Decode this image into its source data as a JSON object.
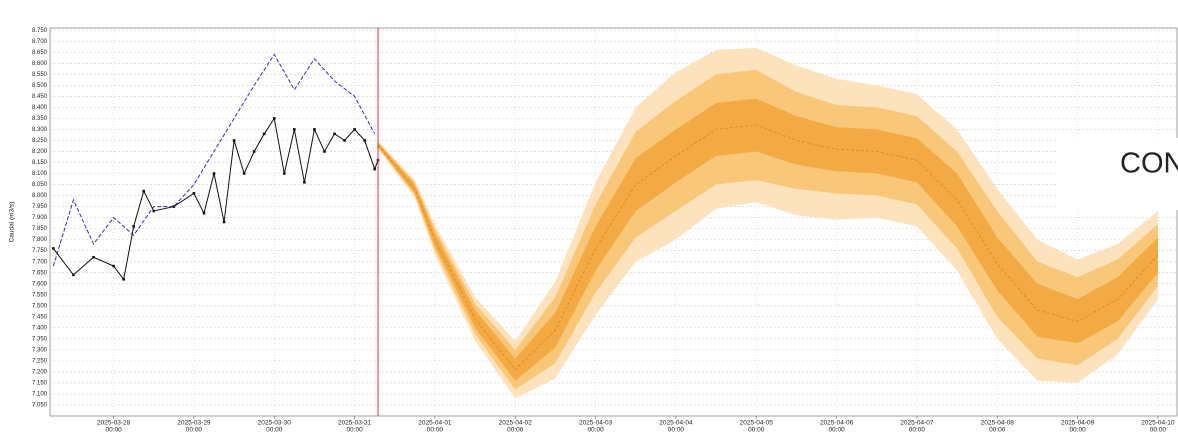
{
  "chart_data": {
    "type": "line",
    "y_label": "Caudal (m3/s)",
    "annotation": "CON",
    "grid": true,
    "xlim": [
      "2025-03-27 05:00",
      "2025-04-10 06:00"
    ],
    "ylim": [
      7.0,
      8.76
    ],
    "yticks": [
      {
        "value": 7.05,
        "label": "7.050"
      },
      {
        "value": 7.1,
        "label": "7.100"
      },
      {
        "value": 7.15,
        "label": "7.150"
      },
      {
        "value": 7.2,
        "label": "7.200"
      },
      {
        "value": 7.25,
        "label": "7.250"
      },
      {
        "value": 7.3,
        "label": "7.300"
      },
      {
        "value": 7.35,
        "label": "7.350"
      },
      {
        "value": 7.4,
        "label": "7.400"
      },
      {
        "value": 7.45,
        "label": "7.450"
      },
      {
        "value": 7.5,
        "label": "7.500"
      },
      {
        "value": 7.55,
        "label": "7.550"
      },
      {
        "value": 7.6,
        "label": "7.600"
      },
      {
        "value": 7.65,
        "label": "7.650"
      },
      {
        "value": 7.7,
        "label": "7.700"
      },
      {
        "value": 7.75,
        "label": "7.750"
      },
      {
        "value": 7.8,
        "label": "7.800"
      },
      {
        "value": 7.85,
        "label": "7.850"
      },
      {
        "value": 7.9,
        "label": "7.900"
      },
      {
        "value": 7.95,
        "label": "7.950"
      },
      {
        "value": 8.0,
        "label": "8.000"
      },
      {
        "value": 8.05,
        "label": "8.050"
      },
      {
        "value": 8.1,
        "label": "8.100"
      },
      {
        "value": 8.15,
        "label": "8.150"
      },
      {
        "value": 8.2,
        "label": "8.200"
      },
      {
        "value": 8.25,
        "label": "8.250"
      },
      {
        "value": 8.3,
        "label": "8.300"
      },
      {
        "value": 8.35,
        "label": "8.350"
      },
      {
        "value": 8.4,
        "label": "8.400"
      },
      {
        "value": 8.45,
        "label": "8.450"
      },
      {
        "value": 8.5,
        "label": "8.500"
      },
      {
        "value": 8.55,
        "label": "8.550"
      },
      {
        "value": 8.6,
        "label": "8.600"
      },
      {
        "value": 8.65,
        "label": "8.650"
      },
      {
        "value": 8.7,
        "label": "8.700"
      },
      {
        "value": 8.75,
        "label": "8.750"
      }
    ],
    "xticks": [
      {
        "value": "2025-03-28 00:00",
        "label": [
          "2025-03-28",
          "00:00"
        ]
      },
      {
        "value": "2025-03-29 00:00",
        "label": [
          "2025-03-29",
          "00:00"
        ]
      },
      {
        "value": "2025-03-30 00:00",
        "label": [
          "2025-03-30",
          "00:00"
        ]
      },
      {
        "value": "2025-03-31 00:00",
        "label": [
          "2025-03-31",
          "00:00"
        ]
      },
      {
        "value": "2025-04-01 00:00",
        "label": [
          "2025-04-01",
          "00:00"
        ]
      },
      {
        "value": "2025-04-02 00:00",
        "label": [
          "2025-04-02",
          "00:00"
        ]
      },
      {
        "value": "2025-04-03 00:00",
        "label": [
          "2025-04-03",
          "00:00"
        ]
      },
      {
        "value": "2025-04-04 00:00",
        "label": [
          "2025-04-04",
          "00:00"
        ]
      },
      {
        "value": "2025-04-05 00:00",
        "label": [
          "2025-04-05",
          "00:00"
        ]
      },
      {
        "value": "2025-04-06 00:00",
        "label": [
          "2025-04-06",
          "00:00"
        ]
      },
      {
        "value": "2025-04-07 00:00",
        "label": [
          "2025-04-07",
          "00:00"
        ]
      },
      {
        "value": "2025-04-08 00:00",
        "label": [
          "2025-04-08",
          "00:00"
        ]
      },
      {
        "value": "2025-04-09 00:00",
        "label": [
          "2025-04-09",
          "00:00"
        ]
      },
      {
        "value": "2025-04-10 00:00",
        "label": [
          "2025-04-10",
          "00:00"
        ]
      }
    ],
    "vline": {
      "x": "2025-03-31 07:00",
      "color": "#e5323c"
    },
    "forecast": {
      "x": [
        "2025-03-31 07:00",
        "2025-03-31 18:00",
        "2025-04-01 00:00",
        "2025-04-01 12:00",
        "2025-04-02 00:00",
        "2025-04-02 12:00",
        "2025-04-03 00:00",
        "2025-04-03 12:00",
        "2025-04-04 00:00",
        "2025-04-04 12:00",
        "2025-04-05 00:00",
        "2025-04-05 12:00",
        "2025-04-06 00:00",
        "2025-04-06 12:00",
        "2025-04-07 00:00",
        "2025-04-07 12:00",
        "2025-04-08 00:00",
        "2025-04-08 12:00",
        "2025-04-09 00:00",
        "2025-04-09 12:00",
        "2025-04-10 00:00"
      ],
      "bands": [
        {
          "color": "#fde3bd",
          "lower": [
            8.21,
            7.99,
            7.73,
            7.34,
            7.08,
            7.17,
            7.46,
            7.7,
            7.8,
            7.94,
            7.97,
            7.91,
            7.89,
            7.9,
            7.86,
            7.66,
            7.35,
            7.16,
            7.15,
            7.28,
            7.53
          ],
          "upper": [
            8.25,
            8.07,
            7.87,
            7.54,
            7.34,
            7.61,
            8.06,
            8.4,
            8.56,
            8.66,
            8.67,
            8.59,
            8.53,
            8.5,
            8.46,
            8.3,
            8.03,
            7.8,
            7.71,
            7.78,
            7.93
          ]
        },
        {
          "color": "#f9c77a",
          "lower": [
            8.22,
            8.0,
            7.75,
            7.37,
            7.12,
            7.24,
            7.56,
            7.81,
            7.93,
            8.05,
            8.07,
            8.03,
            8.01,
            8.0,
            7.96,
            7.76,
            7.45,
            7.26,
            7.23,
            7.35,
            7.59
          ],
          "upper": [
            8.24,
            8.06,
            7.85,
            7.51,
            7.3,
            7.54,
            7.96,
            8.29,
            8.43,
            8.55,
            8.57,
            8.47,
            8.41,
            8.4,
            8.36,
            8.2,
            7.93,
            7.7,
            7.63,
            7.71,
            7.87
          ]
        },
        {
          "color": "#f4aa44",
          "lower": [
            8.22,
            8.01,
            7.77,
            7.4,
            7.16,
            7.31,
            7.66,
            7.93,
            8.06,
            8.18,
            8.2,
            8.14,
            8.11,
            8.1,
            8.06,
            7.86,
            7.57,
            7.36,
            7.33,
            7.43,
            7.65
          ],
          "upper": [
            8.24,
            8.05,
            7.83,
            7.48,
            7.26,
            7.47,
            7.86,
            8.17,
            8.3,
            8.42,
            8.44,
            8.36,
            8.31,
            8.3,
            8.26,
            8.1,
            7.81,
            7.6,
            7.53,
            7.63,
            7.81
          ]
        }
      ],
      "median": {
        "color": "#e08a22",
        "values": [
          8.23,
          8.03,
          7.8,
          7.44,
          7.21,
          7.39,
          7.76,
          8.05,
          8.18,
          8.3,
          8.32,
          8.25,
          8.21,
          8.2,
          8.16,
          7.98,
          7.69,
          7.48,
          7.43,
          7.53,
          7.73
        ]
      }
    },
    "series": [
      {
        "color": "#2b2bd6",
        "dashed": true,
        "markers": false,
        "x": [
          "2025-03-27 06:00",
          "2025-03-27 12:00",
          "2025-03-27 18:00",
          "2025-03-28 00:00",
          "2025-03-28 06:00",
          "2025-03-28 12:00",
          "2025-03-28 18:00",
          "2025-03-29 00:00",
          "2025-03-29 06:00",
          "2025-03-29 12:00",
          "2025-03-29 18:00",
          "2025-03-30 00:00",
          "2025-03-30 06:00",
          "2025-03-30 12:00",
          "2025-03-30 18:00",
          "2025-03-31 00:00",
          "2025-03-31 06:00"
        ],
        "values": [
          7.68,
          7.98,
          7.78,
          7.9,
          7.82,
          7.95,
          7.95,
          8.05,
          8.2,
          8.35,
          8.5,
          8.64,
          8.48,
          8.62,
          8.52,
          8.45,
          8.28
        ]
      },
      {
        "color": "#111111",
        "dashed": false,
        "markers": true,
        "x": [
          "2025-03-27 06:00",
          "2025-03-27 12:00",
          "2025-03-27 18:00",
          "2025-03-28 00:00",
          "2025-03-28 03:00",
          "2025-03-28 06:00",
          "2025-03-28 09:00",
          "2025-03-28 12:00",
          "2025-03-28 18:00",
          "2025-03-29 00:00",
          "2025-03-29 03:00",
          "2025-03-29 06:00",
          "2025-03-29 09:00",
          "2025-03-29 12:00",
          "2025-03-29 15:00",
          "2025-03-29 18:00",
          "2025-03-29 21:00",
          "2025-03-30 00:00",
          "2025-03-30 03:00",
          "2025-03-30 06:00",
          "2025-03-30 09:00",
          "2025-03-30 12:00",
          "2025-03-30 15:00",
          "2025-03-30 18:00",
          "2025-03-30 21:00",
          "2025-03-31 00:00",
          "2025-03-31 03:00",
          "2025-03-31 06:00",
          "2025-03-31 07:00"
        ],
        "values": [
          7.76,
          7.64,
          7.72,
          7.68,
          7.62,
          7.86,
          8.02,
          7.93,
          7.95,
          8.01,
          7.92,
          8.1,
          7.88,
          8.25,
          8.1,
          8.2,
          8.28,
          8.35,
          8.1,
          8.3,
          8.06,
          8.3,
          8.2,
          8.28,
          8.25,
          8.3,
          8.25,
          8.12,
          8.16
        ]
      }
    ]
  }
}
